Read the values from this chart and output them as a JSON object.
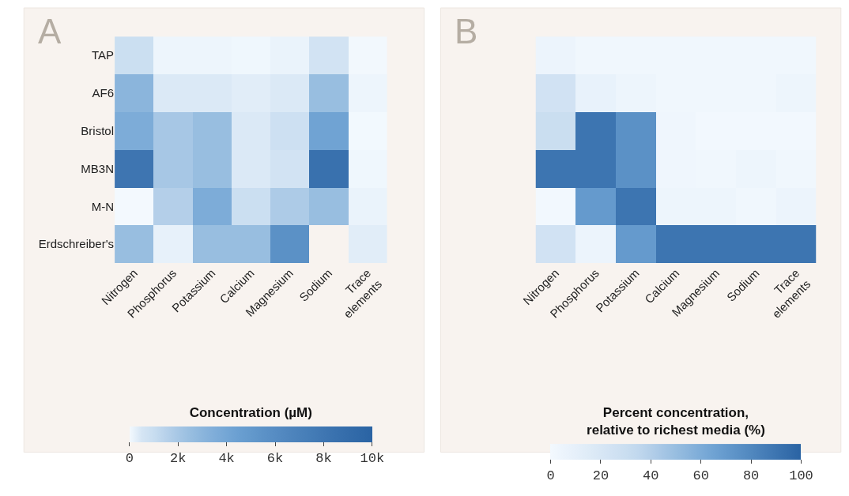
{
  "chart_data": [
    {
      "type": "heatmap",
      "title": "A",
      "clabel": "Concentration (µM)",
      "categories": [
        "Nitrogen",
        "Phosphorus",
        "Potassium",
        "Calcium",
        "Magnesium",
        "Sodium",
        "Trace\nelements"
      ],
      "y_categories": [
        "TAP",
        "AF6",
        "Bristol",
        "MB3N",
        "M-N",
        "Erdschreiber's"
      ],
      "cells": [
        [
          900,
          100,
          100,
          60,
          150,
          600,
          25
        ],
        [
          3000,
          400,
          400,
          300,
          400,
          2500,
          100
        ],
        [
          3600,
          2000,
          2500,
          400,
          800,
          4200,
          10
        ],
        [
          8100,
          2000,
          2500,
          400,
          600,
          8500,
          60
        ],
        [
          5,
          1600,
          3600,
          900,
          1800,
          2500,
          150
        ],
        [
          2500,
          200,
          2500,
          2500,
          5600,
          null,
          300
        ]
      ],
      "clim": [
        0,
        10000
      ],
      "cticks": [
        0,
        {
          "value": 2000,
          "label": "2k"
        },
        {
          "value": 4000,
          "label": "4k"
        },
        {
          "value": 6000,
          "label": "6k"
        },
        {
          "value": 8000,
          "label": "8k"
        },
        {
          "value": 10000,
          "label": "10k"
        }
      ]
    },
    {
      "type": "heatmap",
      "title": "B",
      "clabel": "Percent concentration,\nrelative to richest media (%)",
      "categories": [
        "Nitrogen",
        "Phosphorus",
        "Potassium",
        "Calcium",
        "Magnesium",
        "Sodium",
        "Trace\nelements"
      ],
      "y_categories": [
        null,
        null,
        null,
        null,
        null,
        null
      ],
      "tick_labels": "x",
      "cells": [
        [
          5,
          2,
          2,
          2,
          2,
          2,
          2
        ],
        [
          25,
          8,
          4,
          2,
          2,
          2,
          4
        ],
        [
          30,
          90,
          75,
          3,
          1,
          1,
          1
        ],
        [
          90,
          90,
          75,
          3,
          2,
          4,
          2
        ],
        [
          1,
          70,
          90,
          4,
          4,
          2,
          5
        ],
        [
          25,
          5,
          70,
          90,
          90,
          90,
          90
        ]
      ],
      "clim": [
        0,
        100
      ],
      "cticks": [
        0,
        20,
        40,
        60,
        80,
        100
      ]
    }
  ]
}
